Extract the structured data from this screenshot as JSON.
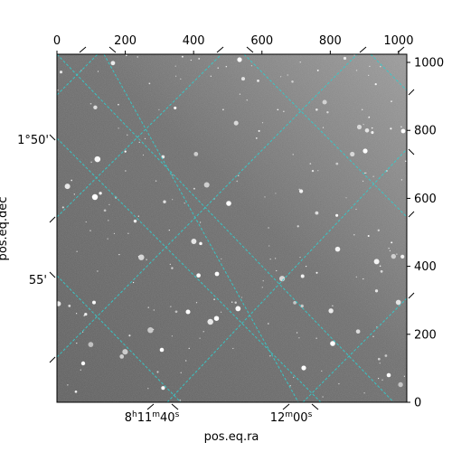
{
  "chart_data": {
    "type": "image",
    "title": "",
    "xlabel": "pos.eq.ra",
    "ylabel": "pos.eq.dec",
    "pixel_axes": {
      "x_ticks": [
        0,
        200,
        400,
        600,
        800,
        1000
      ],
      "y_ticks": [
        0,
        200,
        400,
        600,
        800,
        1000
      ],
      "xlim": [
        0,
        1024
      ],
      "ylim": [
        0,
        1024
      ]
    },
    "world_axes": {
      "ra_ticks": [
        {
          "label": "8h11m40s",
          "h": "8",
          "m": "11",
          "s": "40"
        },
        {
          "label": "12m00s",
          "m": "12",
          "s": "00"
        }
      ],
      "dec_ticks": [
        "1°50'",
        "55'"
      ]
    },
    "grid": true,
    "grid_color": "#33cccc",
    "colormap": "gray"
  }
}
